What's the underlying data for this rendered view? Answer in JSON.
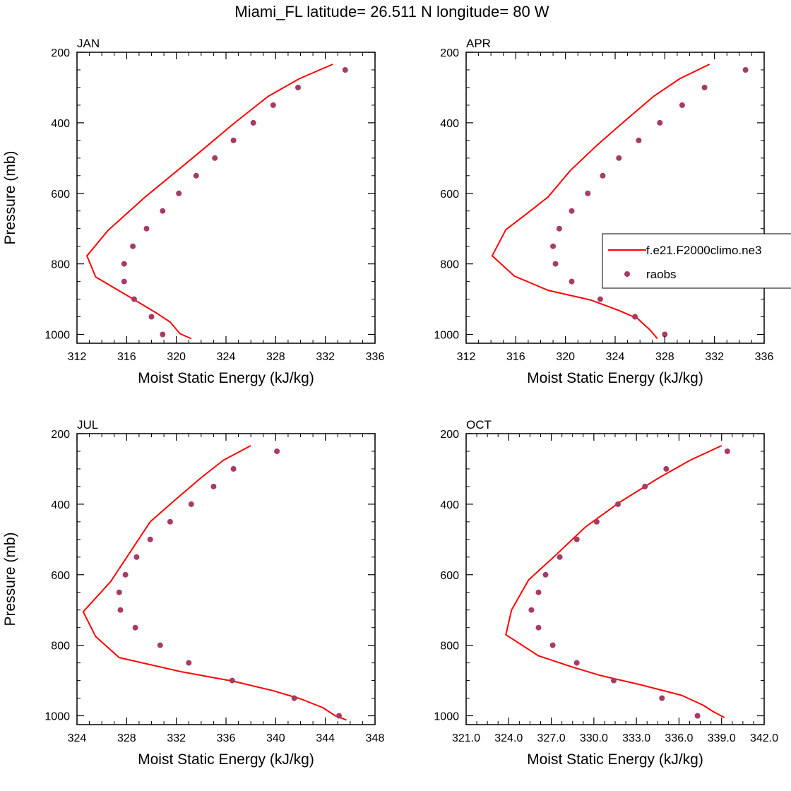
{
  "title": "Miami_FL  latitude= 26.511 N longitude= 80 W",
  "colors": {
    "model": "#ff0000",
    "obs": "#a83a66",
    "axis": "#000000"
  },
  "legend": {
    "placement": "right-middle",
    "entries": [
      "f.e21.F2000climo.ne3",
      "raobs"
    ]
  },
  "chart_data": [
    {
      "type": "line",
      "panel": "JAN",
      "xlabel": "Moist Static Energy (kJ/kg)",
      "ylabel": "Pressure (mb)",
      "xlim": [
        312,
        336
      ],
      "ylim": [
        200,
        1025
      ],
      "y_inverted": true,
      "xticks": [
        312,
        316,
        320,
        324,
        328,
        332,
        336
      ],
      "xtick_labels": [
        "312",
        "316",
        "320",
        "324",
        "328",
        "332",
        "336"
      ],
      "yticks": [
        200,
        400,
        600,
        800,
        1000
      ],
      "yminor": [
        250,
        300,
        350,
        450,
        500,
        550,
        650,
        700,
        750,
        850,
        900,
        950
      ],
      "series": [
        {
          "name": "f.e21.F2000climo.ne3",
          "kind": "line",
          "points": [
            [
              332.6,
              234
            ],
            [
              329.9,
              275
            ],
            [
              327.4,
              325
            ],
            [
              324.7,
              400
            ],
            [
              322.5,
              465
            ],
            [
              320.1,
              535
            ],
            [
              317.5,
              610
            ],
            [
              314.5,
              705
            ],
            [
              312.8,
              777
            ],
            [
              313.5,
              837
            ],
            [
              316.3,
              895
            ],
            [
              318.3,
              937
            ],
            [
              319.5,
              965
            ],
            [
              320.3,
              998
            ],
            [
              321.2,
              1012
            ]
          ]
        },
        {
          "name": "raobs",
          "kind": "scatter",
          "points": [
            [
              333.6,
              250
            ],
            [
              329.8,
              300
            ],
            [
              327.8,
              350
            ],
            [
              326.2,
              400
            ],
            [
              324.6,
              450
            ],
            [
              323.1,
              500
            ],
            [
              321.6,
              550
            ],
            [
              320.2,
              600
            ],
            [
              318.9,
              650
            ],
            [
              317.6,
              700
            ],
            [
              316.5,
              750
            ],
            [
              315.8,
              800
            ],
            [
              315.8,
              850
            ],
            [
              316.6,
              900
            ],
            [
              318.0,
              950
            ],
            [
              318.9,
              1000
            ]
          ]
        }
      ]
    },
    {
      "type": "line",
      "panel": "APR",
      "xlabel": "Moist Static Energy (kJ/kg)",
      "ylabel": "",
      "xlim": [
        312,
        336
      ],
      "ylim": [
        200,
        1025
      ],
      "y_inverted": true,
      "xticks": [
        312,
        316,
        320,
        324,
        328,
        332,
        336
      ],
      "xtick_labels": [
        "312",
        "316",
        "320",
        "324",
        "328",
        "332",
        "336"
      ],
      "yticks": [
        200,
        400,
        600,
        800,
        1000
      ],
      "yminor": [
        250,
        300,
        350,
        450,
        500,
        550,
        650,
        700,
        750,
        850,
        900,
        950
      ],
      "series": [
        {
          "name": "f.e21.F2000climo.ne3",
          "kind": "line",
          "points": [
            [
              331.6,
              234
            ],
            [
              329.2,
              275
            ],
            [
              327.1,
              325
            ],
            [
              324.6,
              400
            ],
            [
              322.5,
              465
            ],
            [
              320.4,
              535
            ],
            [
              318.6,
              610
            ],
            [
              316.8,
              660
            ],
            [
              315.2,
              703
            ],
            [
              314.1,
              777
            ],
            [
              315.9,
              835
            ],
            [
              318.6,
              875
            ],
            [
              322.0,
              902
            ],
            [
              324.3,
              932
            ],
            [
              325.8,
              955
            ],
            [
              326.8,
              987
            ],
            [
              327.4,
              1012
            ]
          ]
        },
        {
          "name": "raobs",
          "kind": "scatter",
          "points": [
            [
              334.5,
              250
            ],
            [
              331.2,
              300
            ],
            [
              329.4,
              350
            ],
            [
              327.6,
              400
            ],
            [
              325.9,
              450
            ],
            [
              324.3,
              500
            ],
            [
              323.0,
              550
            ],
            [
              321.8,
              600
            ],
            [
              320.5,
              650
            ],
            [
              319.5,
              700
            ],
            [
              319.0,
              750
            ],
            [
              319.2,
              800
            ],
            [
              320.5,
              850
            ],
            [
              322.8,
              900
            ],
            [
              325.6,
              950
            ],
            [
              328.0,
              1000
            ]
          ]
        }
      ]
    },
    {
      "type": "line",
      "panel": "JUL",
      "xlabel": "Moist Static Energy (kJ/kg)",
      "ylabel": "Pressure (mb)",
      "xlim": [
        324,
        348
      ],
      "ylim": [
        200,
        1025
      ],
      "y_inverted": true,
      "xticks": [
        324,
        328,
        332,
        336,
        340,
        344,
        348
      ],
      "xtick_labels": [
        "324",
        "328",
        "332",
        "336",
        "340",
        "344",
        "348"
      ],
      "yticks": [
        200,
        400,
        600,
        800,
        1000
      ],
      "yminor": [
        250,
        300,
        350,
        450,
        500,
        550,
        650,
        700,
        750,
        850,
        900,
        950
      ],
      "series": [
        {
          "name": "f.e21.F2000climo.ne3",
          "kind": "line",
          "points": [
            [
              338.0,
              234
            ],
            [
              335.8,
              275
            ],
            [
              334.0,
              325
            ],
            [
              332.0,
              385
            ],
            [
              329.9,
              450
            ],
            [
              328.3,
              535
            ],
            [
              326.7,
              620
            ],
            [
              324.5,
              705
            ],
            [
              325.5,
              775
            ],
            [
              327.4,
              835
            ],
            [
              332.4,
              875
            ],
            [
              336.6,
              902
            ],
            [
              339.7,
              928
            ],
            [
              342.0,
              952
            ],
            [
              343.8,
              977
            ],
            [
              344.8,
              1000
            ],
            [
              345.7,
              1012
            ]
          ]
        },
        {
          "name": "raobs",
          "kind": "scatter",
          "points": [
            [
              340.1,
              250
            ],
            [
              336.6,
              300
            ],
            [
              335.0,
              350
            ],
            [
              333.2,
              400
            ],
            [
              331.5,
              450
            ],
            [
              329.9,
              500
            ],
            [
              328.8,
              550
            ],
            [
              327.9,
              600
            ],
            [
              327.4,
              650
            ],
            [
              327.5,
              700
            ],
            [
              328.7,
              750
            ],
            [
              330.7,
              800
            ],
            [
              333.0,
              850
            ],
            [
              336.5,
              900
            ],
            [
              341.5,
              950
            ],
            [
              345.1,
              1000
            ]
          ]
        }
      ]
    },
    {
      "type": "line",
      "panel": "OCT",
      "xlabel": "Moist Static Energy (kJ/kg)",
      "ylabel": "",
      "xlim": [
        321,
        342
      ],
      "ylim": [
        200,
        1025
      ],
      "y_inverted": true,
      "xticks": [
        321,
        324,
        327,
        330,
        333,
        336,
        339,
        342
      ],
      "xtick_labels": [
        "321.0",
        "324.0",
        "327.0",
        "330.0",
        "333.0",
        "336.0",
        "339.0",
        "342.0"
      ],
      "yticks": [
        200,
        400,
        600,
        800,
        1000
      ],
      "yminor": [
        250,
        300,
        350,
        450,
        500,
        550,
        650,
        700,
        750,
        850,
        900,
        950
      ],
      "series": [
        {
          "name": "f.e21.F2000climo.ne3",
          "kind": "line",
          "points": [
            [
              339.0,
              234
            ],
            [
              336.8,
              275
            ],
            [
              334.6,
              325
            ],
            [
              331.8,
              395
            ],
            [
              329.4,
              465
            ],
            [
              327.3,
              545
            ],
            [
              325.4,
              615
            ],
            [
              324.2,
              700
            ],
            [
              323.8,
              770
            ],
            [
              326.1,
              830
            ],
            [
              328.5,
              862
            ],
            [
              330.4,
              885
            ],
            [
              333.3,
              912
            ],
            [
              336.2,
              942
            ],
            [
              337.7,
              970
            ],
            [
              338.4,
              988
            ],
            [
              339.2,
              1005
            ]
          ]
        },
        {
          "name": "raobs",
          "kind": "scatter",
          "points": [
            [
              339.4,
              250
            ],
            [
              335.1,
              300
            ],
            [
              333.6,
              350
            ],
            [
              331.7,
              400
            ],
            [
              330.2,
              450
            ],
            [
              328.8,
              500
            ],
            [
              327.6,
              550
            ],
            [
              326.6,
              600
            ],
            [
              326.1,
              650
            ],
            [
              325.6,
              700
            ],
            [
              326.1,
              750
            ],
            [
              327.1,
              800
            ],
            [
              328.8,
              850
            ],
            [
              331.4,
              900
            ],
            [
              334.8,
              950
            ],
            [
              337.3,
              1000
            ]
          ]
        }
      ]
    }
  ]
}
